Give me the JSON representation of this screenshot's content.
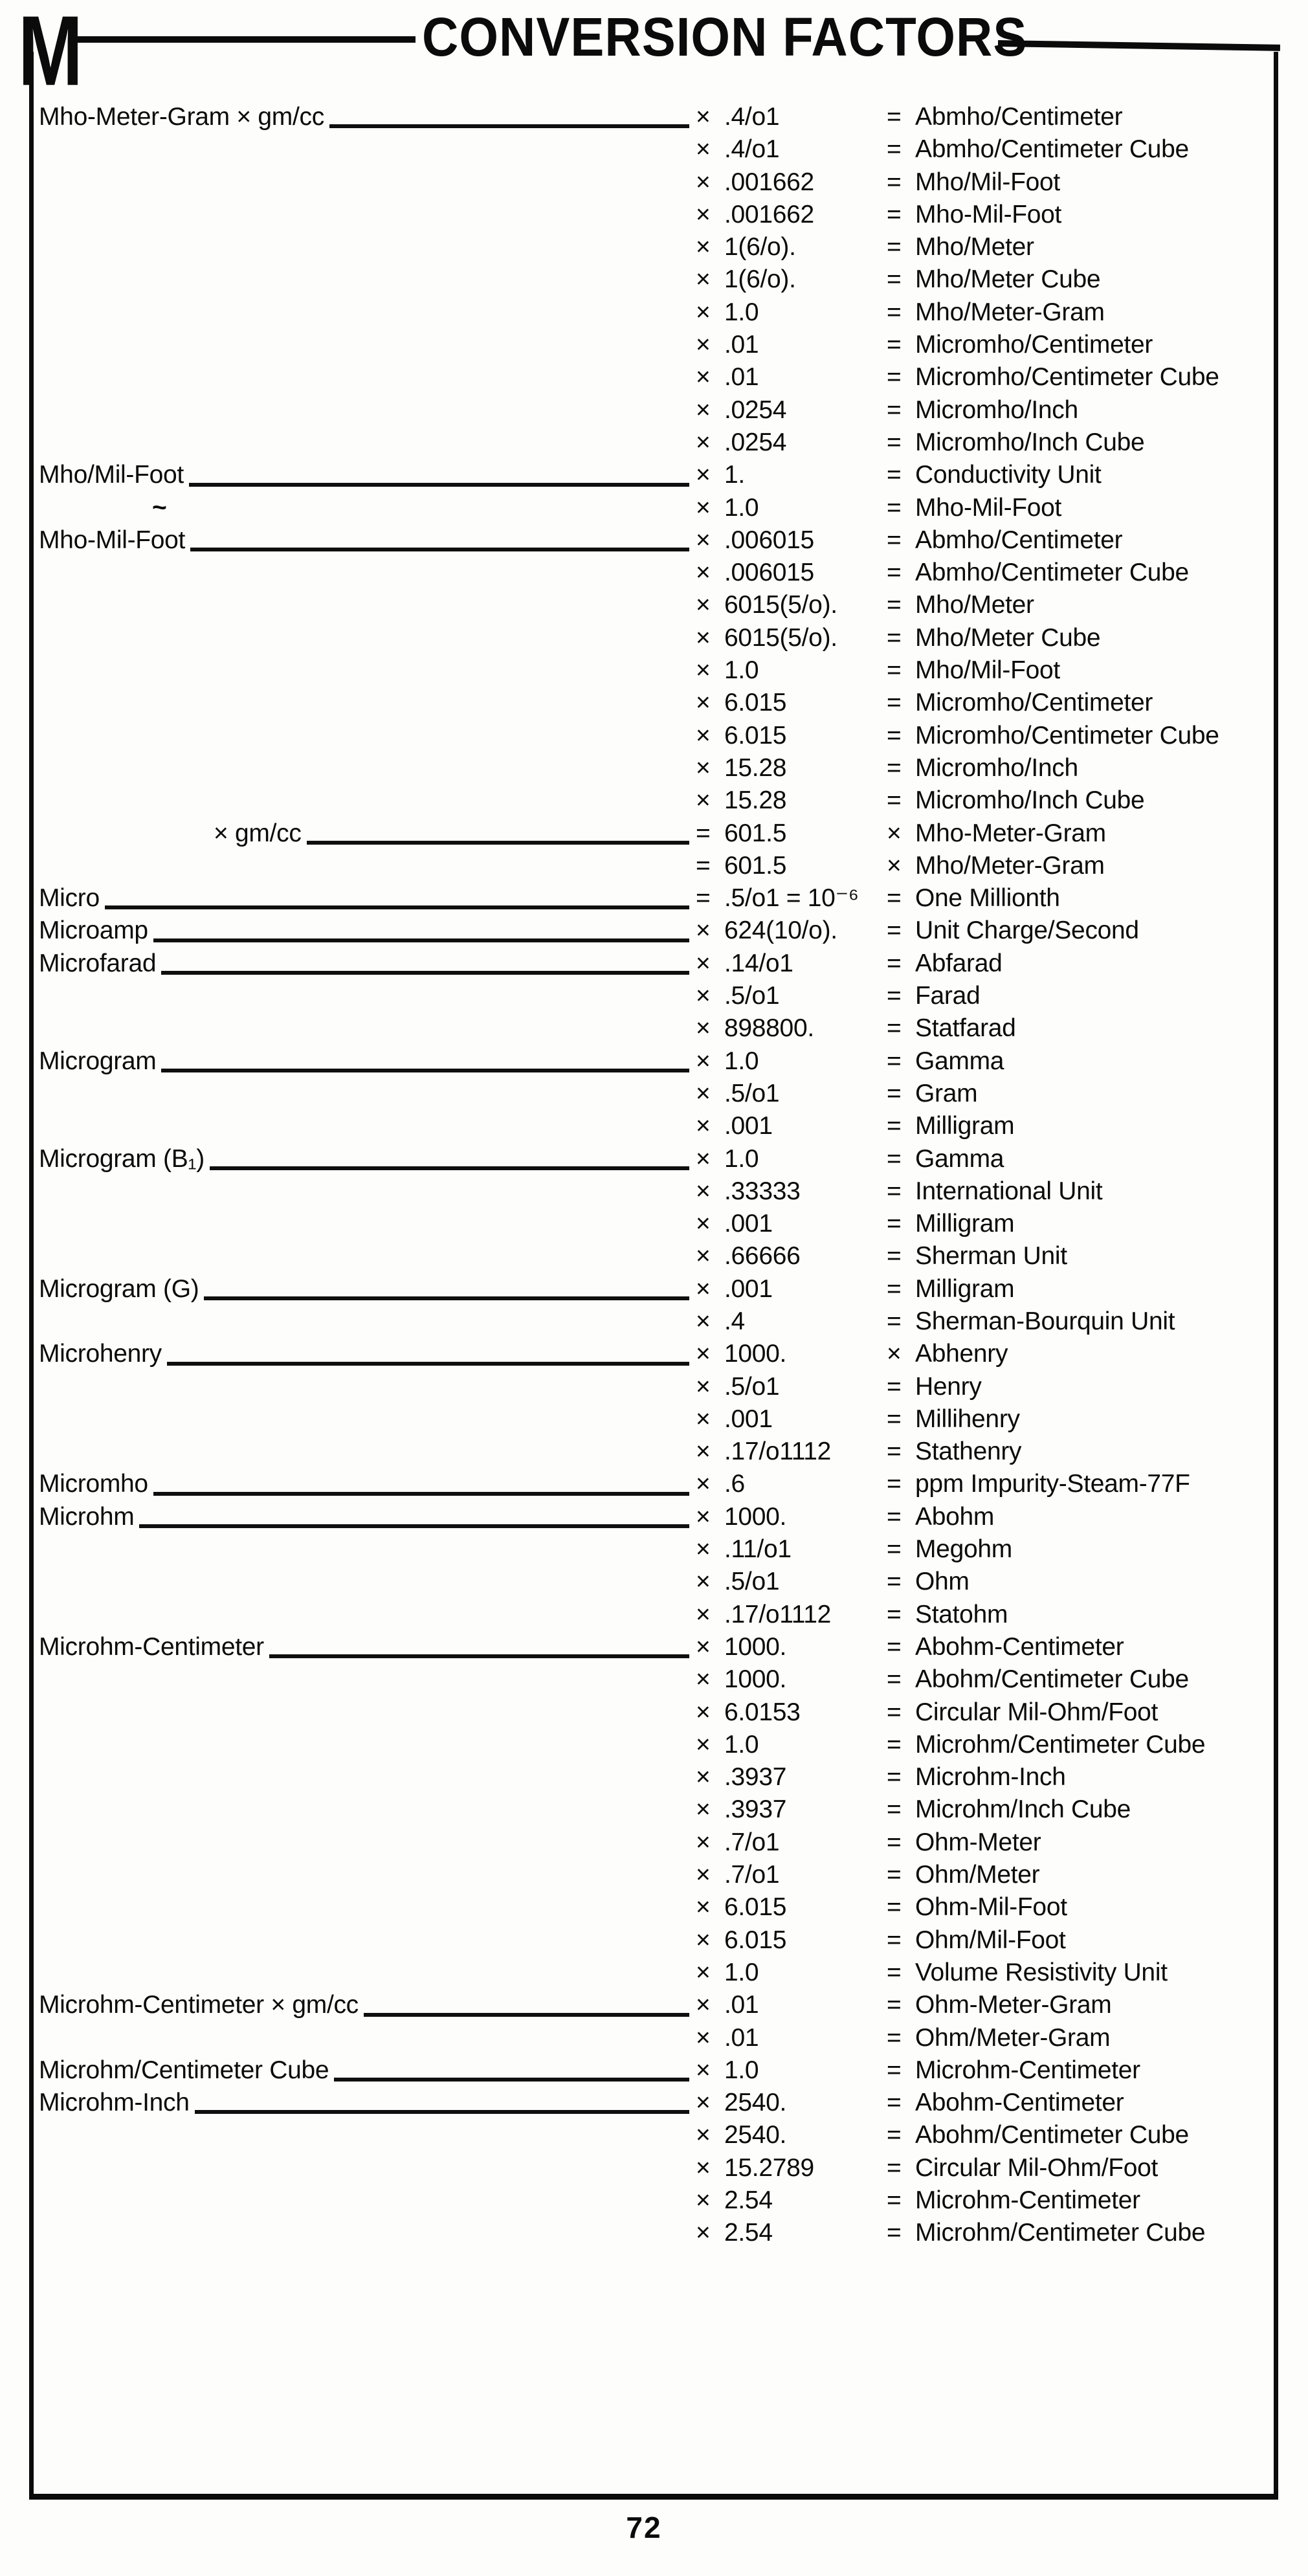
{
  "page": {
    "letter": "M",
    "title": "CONVERSION FACTORS",
    "page_number": "72"
  },
  "table": {
    "rows": [
      {
        "label": "Mho-Meter-Gram × gm/cc",
        "leader": true,
        "factor_op": "×",
        "factor": ".4/o1",
        "result_op": "=",
        "result": "Abmho/Centimeter"
      },
      {
        "factor_op": "×",
        "factor": ".4/o1",
        "result_op": "=",
        "result": "Abmho/Centimeter Cube"
      },
      {
        "factor_op": "×",
        "factor": ".001662",
        "result_op": "=",
        "result": "Mho/Mil-Foot"
      },
      {
        "factor_op": "×",
        "factor": ".001662",
        "result_op": "=",
        "result": "Mho-Mil-Foot"
      },
      {
        "factor_op": "×",
        "factor": "1(6/o).",
        "result_op": "=",
        "result": "Mho/Meter"
      },
      {
        "factor_op": "×",
        "factor": "1(6/o).",
        "result_op": "=",
        "result": "Mho/Meter Cube"
      },
      {
        "factor_op": "×",
        "factor": "1.0",
        "result_op": "=",
        "result": "Mho/Meter-Gram"
      },
      {
        "factor_op": "×",
        "factor": ".01",
        "result_op": "=",
        "result": "Micromho/Centimeter"
      },
      {
        "factor_op": "×",
        "factor": ".01",
        "result_op": "=",
        "result": "Micromho/Centimeter Cube"
      },
      {
        "factor_op": "×",
        "factor": ".0254",
        "result_op": "=",
        "result": "Micromho/Inch"
      },
      {
        "factor_op": "×",
        "factor": ".0254",
        "result_op": "=",
        "result": "Micromho/Inch Cube"
      },
      {
        "label": "Mho/Mil-Foot",
        "leader": true,
        "factor_op": "×",
        "factor": "1.",
        "result_op": "=",
        "result": "Conductivity Unit"
      },
      {
        "label": "~",
        "tilde": true,
        "factor_op": "×",
        "factor": "1.0",
        "result_op": "=",
        "result": "Mho-Mil-Foot"
      },
      {
        "label": "Mho-Mil-Foot",
        "leader": true,
        "factor_op": "×",
        "factor": ".006015",
        "result_op": "=",
        "result": "Abmho/Centimeter"
      },
      {
        "factor_op": "×",
        "factor": ".006015",
        "result_op": "=",
        "result": "Abmho/Centimeter Cube"
      },
      {
        "factor_op": "×",
        "factor": "6015(5/o).",
        "result_op": "=",
        "result": "Mho/Meter"
      },
      {
        "factor_op": "×",
        "factor": "6015(5/o).",
        "result_op": "=",
        "result": "Mho/Meter Cube"
      },
      {
        "factor_op": "×",
        "factor": "1.0",
        "result_op": "=",
        "result": "Mho/Mil-Foot"
      },
      {
        "factor_op": "×",
        "factor": "6.015",
        "result_op": "=",
        "result": "Micromho/Centimeter"
      },
      {
        "factor_op": "×",
        "factor": "6.015",
        "result_op": "=",
        "result": "Micromho/Centimeter Cube"
      },
      {
        "factor_op": "×",
        "factor": "15.28",
        "result_op": "=",
        "result": "Micromho/Inch"
      },
      {
        "factor_op": "×",
        "factor": "15.28",
        "result_op": "=",
        "result": "Micromho/Inch Cube"
      },
      {
        "label": "× gm/cc",
        "indent": true,
        "leader": true,
        "factor_op": "=",
        "factor": "601.5",
        "result_op": "×",
        "result": "Mho-Meter-Gram"
      },
      {
        "factor_op": "=",
        "factor": "601.5",
        "result_op": "×",
        "result": "Mho/Meter-Gram"
      },
      {
        "label": "Micro",
        "leader": true,
        "factor_op": "=",
        "factor": ".5/o1 = 10⁻⁶",
        "result_op": "=",
        "result": "One Millionth"
      },
      {
        "label": "Microamp",
        "leader": true,
        "factor_op": "×",
        "factor": "624(10/o).",
        "result_op": "=",
        "result": "Unit Charge/Second"
      },
      {
        "label": "Microfarad",
        "leader": true,
        "factor_op": "×",
        "factor": ".14/o1",
        "result_op": "=",
        "result": "Abfarad"
      },
      {
        "factor_op": "×",
        "factor": ".5/o1",
        "result_op": "=",
        "result": "Farad"
      },
      {
        "factor_op": "×",
        "factor": "898800.",
        "result_op": "=",
        "result": "Statfarad"
      },
      {
        "label": "Microgram",
        "leader": true,
        "factor_op": "×",
        "factor": "1.0",
        "result_op": "=",
        "result": "Gamma"
      },
      {
        "factor_op": "×",
        "factor": ".5/o1",
        "result_op": "=",
        "result": "Gram"
      },
      {
        "factor_op": "×",
        "factor": ".001",
        "result_op": "=",
        "result": "Milligram"
      },
      {
        "label": "Microgram (B₁)",
        "leader": true,
        "factor_op": "×",
        "factor": "1.0",
        "result_op": "=",
        "result": "Gamma"
      },
      {
        "factor_op": "×",
        "factor": ".33333",
        "result_op": "=",
        "result": "International Unit"
      },
      {
        "factor_op": "×",
        "factor": ".001",
        "result_op": "=",
        "result": "Milligram"
      },
      {
        "factor_op": "×",
        "factor": ".66666",
        "result_op": "=",
        "result": "Sherman Unit"
      },
      {
        "label": "Microgram (G)",
        "leader": true,
        "factor_op": "×",
        "factor": ".001",
        "result_op": "=",
        "result": "Milligram"
      },
      {
        "factor_op": "×",
        "factor": ".4",
        "result_op": "=",
        "result": "Sherman-Bourquin Unit"
      },
      {
        "label": "Microhenry",
        "leader": true,
        "factor_op": "×",
        "factor": "1000.",
        "result_op": "×",
        "result": "Abhenry"
      },
      {
        "factor_op": "×",
        "factor": ".5/o1",
        "result_op": "=",
        "result": "Henry"
      },
      {
        "factor_op": "×",
        "factor": ".001",
        "result_op": "=",
        "result": "Millihenry"
      },
      {
        "factor_op": "×",
        "factor": ".17/o1112",
        "result_op": "=",
        "result": "Stathenry"
      },
      {
        "label": "Micromho",
        "leader": true,
        "factor_op": "×",
        "factor": ".6",
        "result_op": "=",
        "result": "ppm Impurity-Steam-77F"
      },
      {
        "label": "Microhm",
        "leader": true,
        "factor_op": "×",
        "factor": "1000.",
        "result_op": "=",
        "result": "Abohm"
      },
      {
        "factor_op": "×",
        "factor": ".11/o1",
        "result_op": "=",
        "result": "Megohm"
      },
      {
        "factor_op": "×",
        "factor": ".5/o1",
        "result_op": "=",
        "result": "Ohm"
      },
      {
        "factor_op": "×",
        "factor": ".17/o1112",
        "result_op": "=",
        "result": "Statohm"
      },
      {
        "label": "Microhm-Centimeter",
        "leader": true,
        "factor_op": "×",
        "factor": "1000.",
        "result_op": "=",
        "result": "Abohm-Centimeter"
      },
      {
        "factor_op": "×",
        "factor": "1000.",
        "result_op": "=",
        "result": "Abohm/Centimeter Cube"
      },
      {
        "factor_op": "×",
        "factor": "6.0153",
        "result_op": "=",
        "result": "Circular Mil-Ohm/Foot"
      },
      {
        "factor_op": "×",
        "factor": "1.0",
        "result_op": "=",
        "result": "Microhm/Centimeter Cube"
      },
      {
        "factor_op": "×",
        "factor": ".3937",
        "result_op": "=",
        "result": "Microhm-Inch"
      },
      {
        "factor_op": "×",
        "factor": ".3937",
        "result_op": "=",
        "result": "Microhm/Inch Cube"
      },
      {
        "factor_op": "×",
        "factor": ".7/o1",
        "result_op": "=",
        "result": "Ohm-Meter"
      },
      {
        "factor_op": "×",
        "factor": ".7/o1",
        "result_op": "=",
        "result": "Ohm/Meter"
      },
      {
        "factor_op": "×",
        "factor": "6.015",
        "result_op": "=",
        "result": "Ohm-Mil-Foot"
      },
      {
        "factor_op": "×",
        "factor": "6.015",
        "result_op": "=",
        "result": "Ohm/Mil-Foot"
      },
      {
        "factor_op": "×",
        "factor": "1.0",
        "result_op": "=",
        "result": "Volume Resistivity Unit"
      },
      {
        "label": "Microhm-Centimeter × gm/cc",
        "leader": true,
        "factor_op": "×",
        "factor": ".01",
        "result_op": "=",
        "result": "Ohm-Meter-Gram"
      },
      {
        "factor_op": "×",
        "factor": ".01",
        "result_op": "=",
        "result": "Ohm/Meter-Gram"
      },
      {
        "label": "Microhm/Centimeter Cube",
        "leader": true,
        "factor_op": "×",
        "factor": "1.0",
        "result_op": "=",
        "result": "Microhm-Centimeter"
      },
      {
        "label": "Microhm-Inch",
        "leader": true,
        "factor_op": "×",
        "factor": "2540.",
        "result_op": "=",
        "result": "Abohm-Centimeter"
      },
      {
        "factor_op": "×",
        "factor": "2540.",
        "result_op": "=",
        "result": "Abohm/Centimeter Cube"
      },
      {
        "factor_op": "×",
        "factor": "15.2789",
        "result_op": "=",
        "result": "Circular Mil-Ohm/Foot"
      },
      {
        "factor_op": "×",
        "factor": "2.54",
        "result_op": "=",
        "result": "Microhm-Centimeter"
      },
      {
        "factor_op": "×",
        "factor": "2.54",
        "result_op": "=",
        "result": "Microhm/Centimeter Cube"
      }
    ]
  }
}
